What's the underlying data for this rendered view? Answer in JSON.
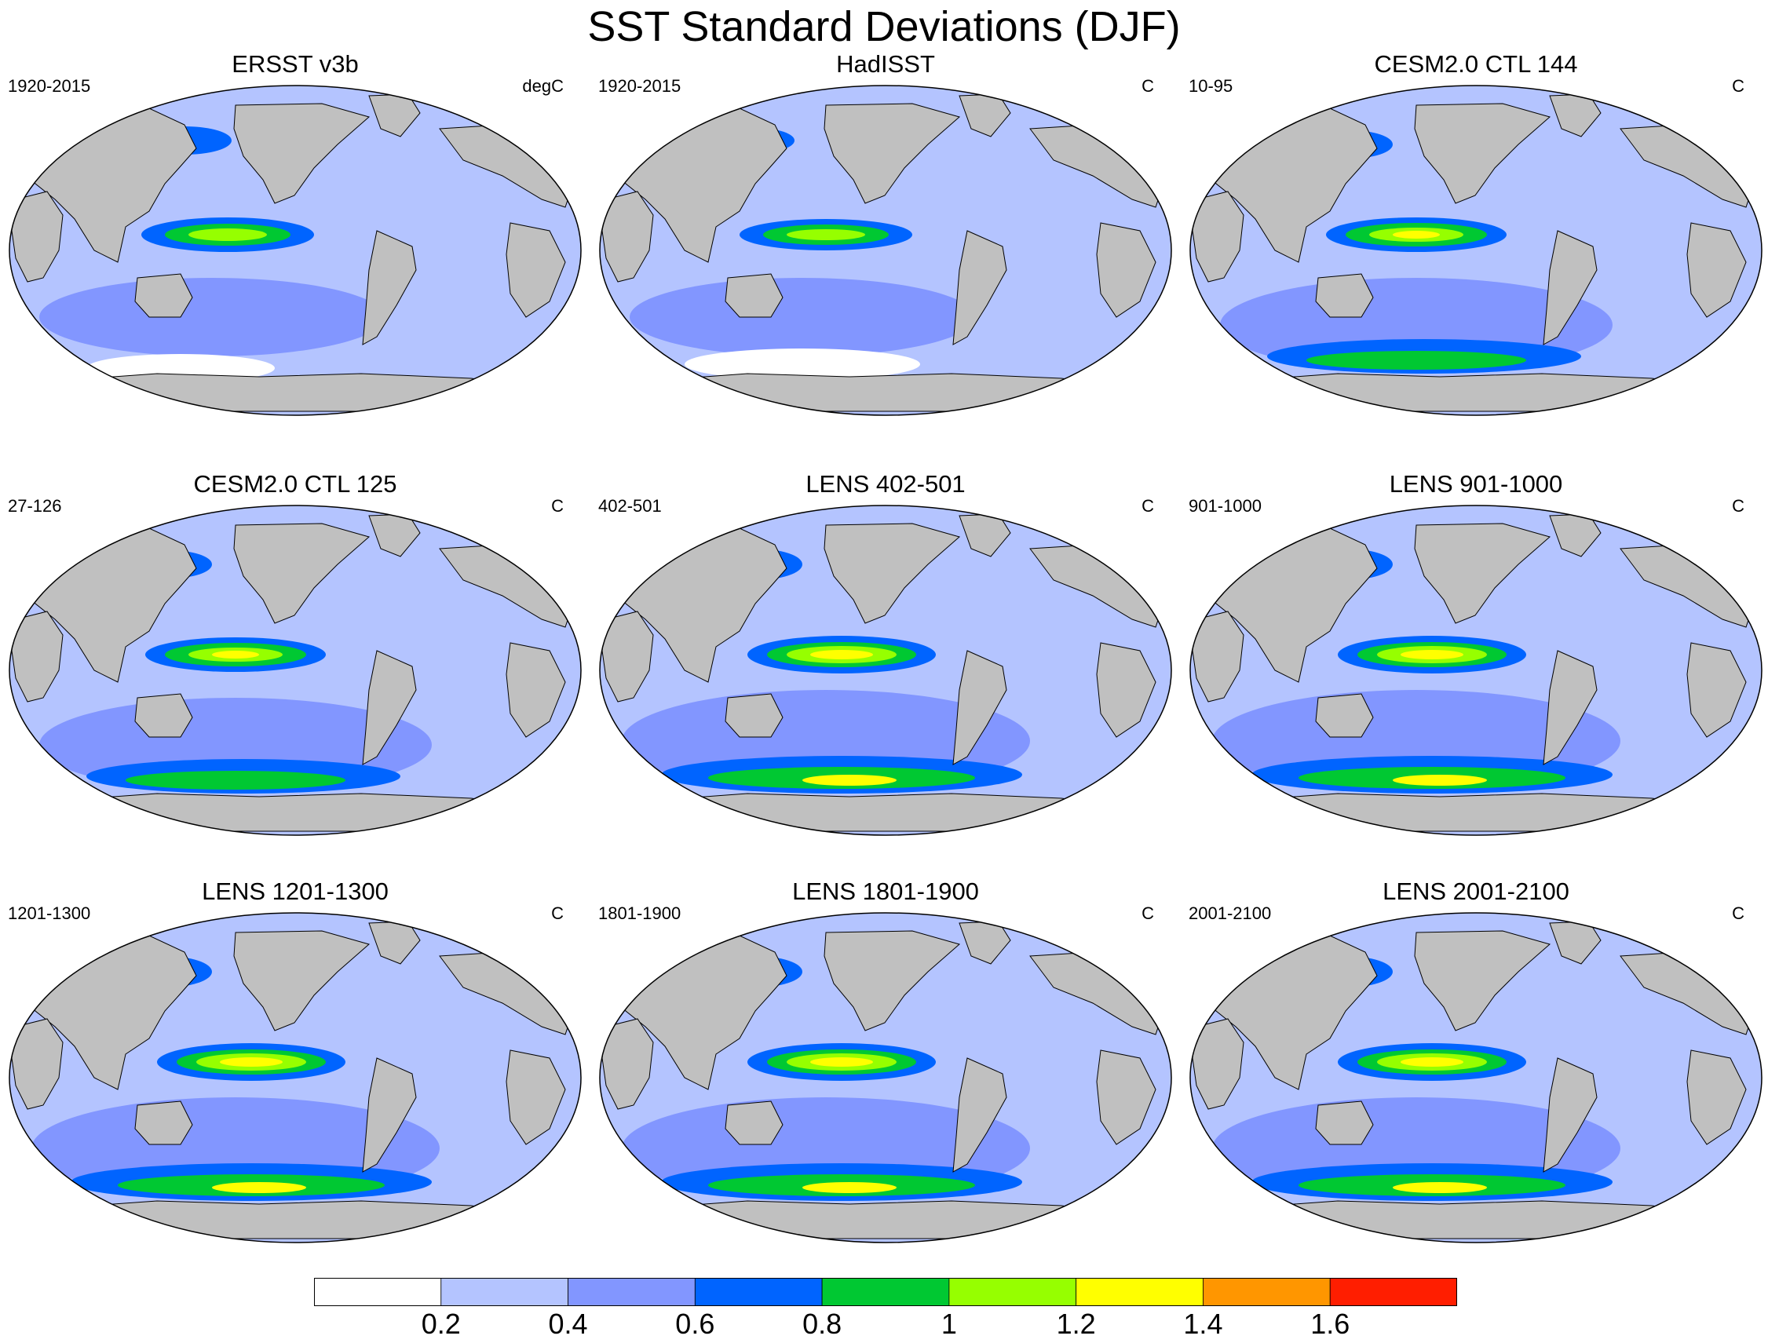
{
  "title": "SST Standard Deviations (DJF)",
  "panels": [
    {
      "title": "ERSST v3b",
      "period": "1920-2015",
      "units": "degC",
      "profile": "obs1"
    },
    {
      "title": "HadISST",
      "period": "1920-2015",
      "units": "C",
      "profile": "obs2"
    },
    {
      "title": "CESM2.0 CTL 144",
      "period": "10-95",
      "units": "C",
      "profile": "model"
    },
    {
      "title": "CESM2.0 CTL 125",
      "period": "27-126",
      "units": "C",
      "profile": "model"
    },
    {
      "title": "LENS 402-501",
      "period": "402-501",
      "units": "C",
      "profile": "lens"
    },
    {
      "title": "LENS 901-1000",
      "period": "901-1000",
      "units": "C",
      "profile": "lens"
    },
    {
      "title": "LENS 1201-1300",
      "period": "1201-1300",
      "units": "C",
      "profile": "lens"
    },
    {
      "title": "LENS 1801-1900",
      "period": "1801-1900",
      "units": "C",
      "profile": "lens"
    },
    {
      "title": "LENS 2001-2100",
      "period": "2001-2100",
      "units": "C",
      "profile": "lens"
    }
  ],
  "colorbar": {
    "labels": [
      "0.2",
      "0.4",
      "0.6",
      "0.8",
      "1",
      "1.2",
      "1.4",
      "1.6"
    ],
    "colors": [
      "#ffffff",
      "#b4c4ff",
      "#8296ff",
      "#0064ff",
      "#00c832",
      "#96ff00",
      "#ffff00",
      "#ff9600",
      "#ff1e00"
    ]
  },
  "map_colors": {
    "land": "#c0c0c0",
    "outline": "#000000"
  }
}
